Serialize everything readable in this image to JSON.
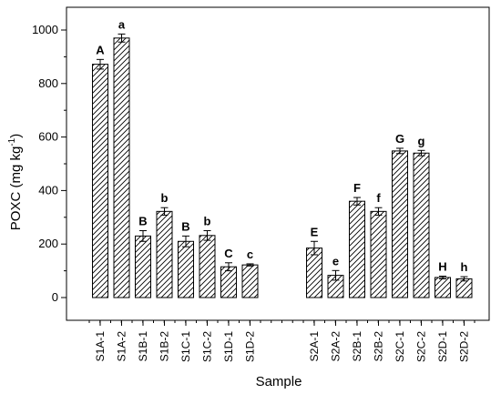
{
  "chart_data": {
    "type": "bar",
    "xlabel": "Sample",
    "ylabel_main": "POXC (mg kg",
    "ylabel_sup": "-1",
    "ylabel_close": ")",
    "ylim": [
      -85,
      1085
    ],
    "yticks": [
      0,
      200,
      400,
      600,
      800,
      1000
    ],
    "grid": false,
    "groups": [
      {
        "categories": [
          "S1A-1",
          "S1A-2",
          "S1B-1",
          "S1B-2",
          "S1C-1",
          "S1C-2",
          "S1D-1",
          "S1D-2"
        ],
        "values": [
          872,
          970,
          230,
          322,
          210,
          232,
          115,
          122
        ],
        "errors": [
          18,
          15,
          20,
          14,
          20,
          18,
          15,
          4
        ],
        "labels": [
          "A",
          "a",
          "B",
          "b",
          "B",
          "b",
          "C",
          "c"
        ]
      },
      {
        "categories": [
          "S2A-1",
          "S2A-2",
          "S2B-1",
          "S2B-2",
          "S2C-1",
          "S2C-2",
          "S2D-1",
          "S2D-2"
        ],
        "values": [
          185,
          83,
          360,
          322,
          548,
          540,
          75,
          70
        ],
        "errors": [
          25,
          18,
          14,
          14,
          10,
          10,
          5,
          8
        ],
        "labels": [
          "E",
          "e",
          "F",
          "f",
          "G",
          "g",
          "H",
          "h"
        ]
      }
    ]
  }
}
